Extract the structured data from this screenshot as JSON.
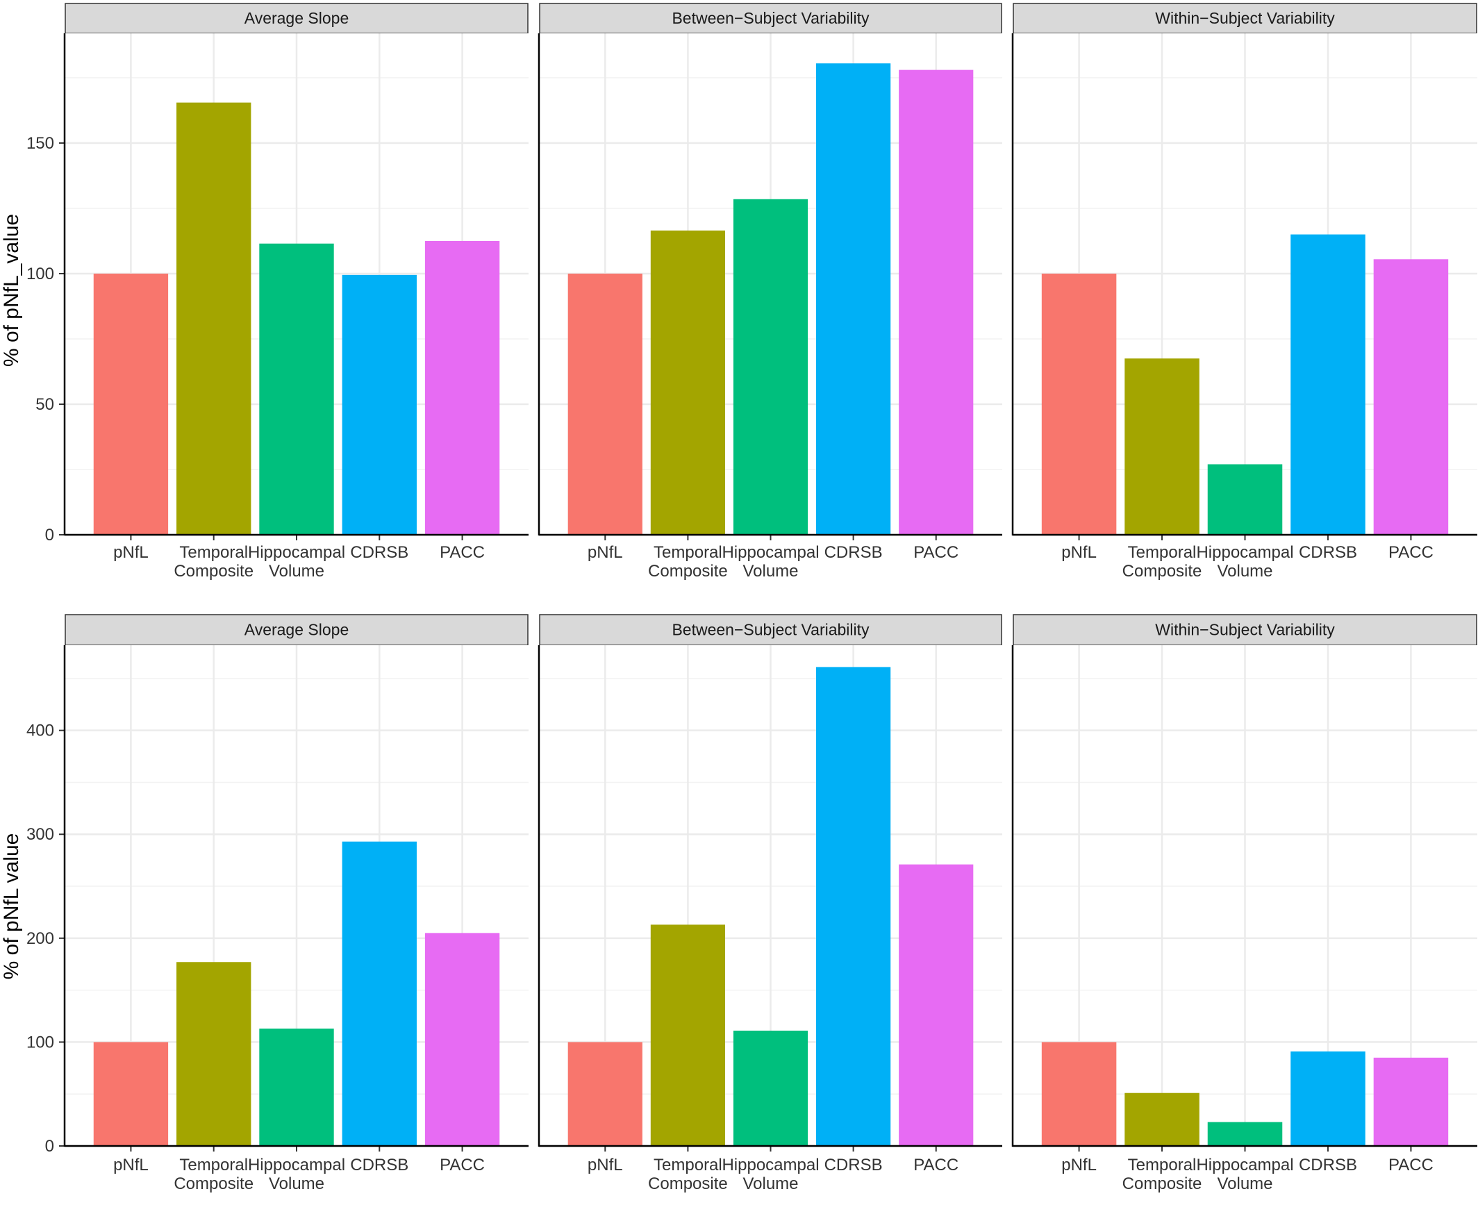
{
  "colors": {
    "pNfL": "#F8766D",
    "Temporal Composite": "#A3A500",
    "Hippocampal Volume": "#00BF7D",
    "CDRSB": "#00B0F6",
    "PACC": "#E76BF3",
    "strip_fill": "#D9D9D9",
    "grid": "#EBEBEB",
    "axis": "#000000",
    "text": "#333333"
  },
  "chart_data": [
    {
      "type": "bar",
      "row": "top",
      "ylabel": "% of pNfL_value",
      "ylim": [
        0,
        192
      ],
      "yticks": [
        0,
        50,
        100,
        150
      ],
      "categories": [
        "pNfL",
        "Temporal\nComposite",
        "Hippocampal\nVolume",
        "CDRSB",
        "PACC"
      ],
      "panels": [
        {
          "title": "Average Slope",
          "values": [
            100,
            165.5,
            111.5,
            99.5,
            112.5
          ]
        },
        {
          "title": "Between−Subject Variability",
          "values": [
            100,
            116.5,
            128.5,
            180.5,
            178
          ]
        },
        {
          "title": "Within−Subject Variability",
          "values": [
            100,
            67.5,
            27,
            115,
            105.5
          ]
        }
      ]
    },
    {
      "type": "bar",
      "row": "bottom",
      "ylabel": "% of pNfL value",
      "ylim": [
        0,
        482
      ],
      "yticks": [
        0,
        100,
        200,
        300,
        400
      ],
      "categories": [
        "pNfL",
        "Temporal\nComposite",
        "Hippocampal\nVolume",
        "CDRSB",
        "PACC"
      ],
      "panels": [
        {
          "title": "Average Slope",
          "values": [
            100,
            177,
            113,
            293,
            205
          ]
        },
        {
          "title": "Between−Subject Variability",
          "values": [
            100,
            213,
            111,
            461,
            271
          ]
        },
        {
          "title": "Within−Subject Variability",
          "values": [
            100,
            51,
            23,
            91,
            85
          ]
        }
      ]
    }
  ]
}
